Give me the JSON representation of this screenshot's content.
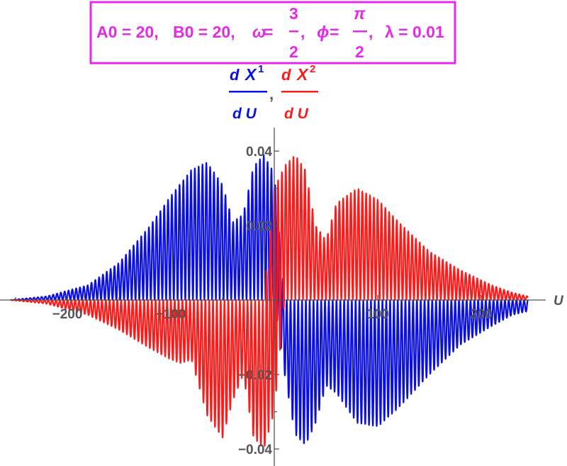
{
  "title": {
    "A0": "A0 = 20,",
    "B0": "B0 = 20,",
    "omega_symbol": "ω",
    "omega_eq": " =",
    "omega_num": "3",
    "omega_den": "2",
    "omega_comma": ",",
    "phi_symbol": "ϕ",
    "phi_eq": " =",
    "phi_num": "π",
    "phi_den": "2",
    "phi_comma": ",",
    "lambda": "λ = 0.01"
  },
  "ylabel": {
    "s1_num_d": "d",
    "s1_num_var": "X",
    "s1_num_sup": "1",
    "s1_den": "d U",
    "sep": ",",
    "s2_num_d": "d",
    "s2_num_var": "X",
    "s2_num_sup": "2",
    "s2_den": "d U"
  },
  "colors": {
    "series1": "#0a0fe6",
    "series2": "#ff1a1a",
    "title": "#e629e6",
    "axis": "#555555"
  },
  "chart_data": {
    "type": "line",
    "xlabel": "U",
    "xlim": [
      -255,
      245
    ],
    "ylim": [
      -0.044,
      0.046
    ],
    "x_ticks": [
      -200,
      -100,
      100,
      200
    ],
    "x_tick_labels": [
      "−200",
      "−100",
      "100",
      "200"
    ],
    "y_ticks": [
      -0.04,
      -0.02,
      0.02,
      0.04
    ],
    "y_tick_labels": [
      "−0.04",
      "−0.02",
      "0.02",
      "0.04"
    ],
    "grid": false,
    "oscillation_period_U": 3.7,
    "series": [
      {
        "color": "#0a0fe6",
        "envelope": {
          "U": [
            -255,
            -220,
            -180,
            -150,
            -120,
            -100,
            -80,
            -65,
            -50,
            -40,
            -30,
            -20,
            -10,
            0,
            10,
            20,
            30,
            40,
            50,
            60,
            80,
            100,
            120,
            150,
            180,
            210,
            230,
            245
          ],
          "upper": [
            0.0,
            0.001,
            0.004,
            0.01,
            0.02,
            0.028,
            0.035,
            0.037,
            0.031,
            0.021,
            0.023,
            0.036,
            0.039,
            0.034,
            0.0,
            0.0,
            0.0,
            0.0,
            0.0,
            0.0,
            0.0,
            0.0,
            0.0,
            0.0,
            0.0,
            0.0,
            0.0,
            0.0
          ],
          "lower": [
            0.0,
            0.0,
            0.0,
            0.0,
            0.0,
            0.0,
            0.0,
            0.0,
            0.0,
            0.0,
            0.0,
            0.0,
            0.0,
            0.0,
            -0.02,
            -0.036,
            -0.039,
            -0.033,
            -0.023,
            -0.025,
            -0.033,
            -0.034,
            -0.029,
            -0.02,
            -0.012,
            -0.007,
            -0.004,
            -0.003
          ]
        }
      },
      {
        "color": "#ff1a1a",
        "envelope": {
          "U": [
            -255,
            -220,
            -180,
            -150,
            -120,
            -100,
            -90,
            -80,
            -65,
            -50,
            -40,
            -30,
            -20,
            -10,
            0,
            10,
            20,
            30,
            40,
            50,
            60,
            80,
            100,
            120,
            150,
            180,
            210,
            230,
            245
          ],
          "upper": [
            0.0,
            0.0,
            0.0,
            0.0,
            0.0,
            0.0,
            0.0,
            0.0,
            0.0,
            0.0,
            0.0,
            0.0,
            0.0,
            0.0,
            0.03,
            0.036,
            0.039,
            0.035,
            0.02,
            0.016,
            0.026,
            0.03,
            0.027,
            0.021,
            0.013,
            0.008,
            0.004,
            0.002,
            0.001
          ],
          "lower": [
            0.0,
            -0.001,
            -0.004,
            -0.008,
            -0.013,
            -0.016,
            -0.017,
            -0.016,
            -0.031,
            -0.037,
            -0.027,
            -0.02,
            -0.037,
            -0.04,
            -0.03,
            0.0,
            0.0,
            0.0,
            0.0,
            0.0,
            0.0,
            0.0,
            0.0,
            0.0,
            0.0,
            0.0,
            0.0,
            0.0,
            0.0
          ]
        }
      }
    ]
  }
}
